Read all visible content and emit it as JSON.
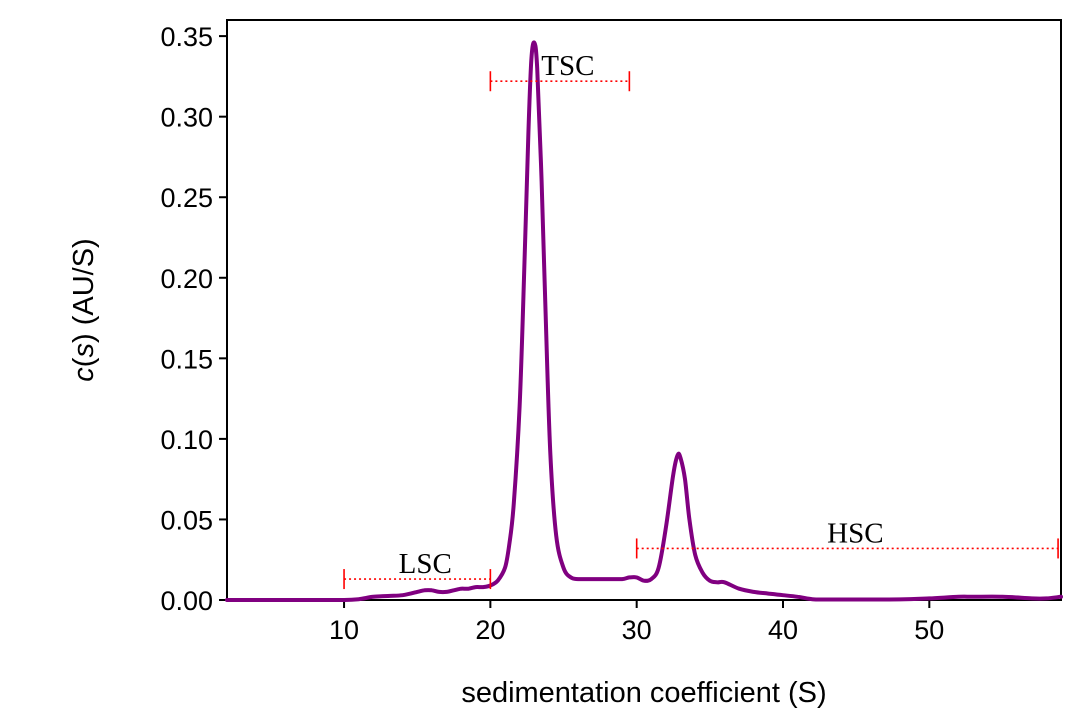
{
  "chart_data": {
    "type": "line",
    "title": "",
    "xlabel": "sedimentation coefficient (S)",
    "ylabel_italic": "c",
    "ylabel_prefix_paren": "(",
    "ylabel_var": "s",
    "ylabel_rest": ") (AU/S)",
    "xlim": [
      2,
      59
    ],
    "ylim": [
      0,
      0.36
    ],
    "xticks": [
      10,
      20,
      30,
      40,
      50
    ],
    "xtick_labels": [
      "10",
      "20",
      "30",
      "40",
      "50"
    ],
    "yticks": [
      0,
      0.05,
      0.1,
      0.15,
      0.2,
      0.25,
      0.3,
      0.35
    ],
    "ytick_labels": [
      "0.00",
      "0.05",
      "0.10",
      "0.15",
      "0.20",
      "0.25",
      "0.30",
      "0.35"
    ],
    "grid": false,
    "series": [
      {
        "color": "#800080",
        "x": [
          2,
          8,
          10,
          11,
          12,
          13,
          14,
          15,
          15.5,
          16,
          16.5,
          17,
          17.5,
          18,
          18.5,
          19,
          19.5,
          20,
          20.5,
          21,
          21.3,
          21.6,
          22,
          22.3,
          22.6,
          22.8,
          23.0,
          23.2,
          23.5,
          23.8,
          24.1,
          24.5,
          25,
          25.5,
          26,
          27,
          28,
          29,
          29.5,
          30,
          30.5,
          31,
          31.5,
          32,
          32.5,
          32.8,
          33.0,
          33.3,
          33.6,
          34,
          34.5,
          35,
          35.5,
          36,
          37,
          38,
          39,
          40,
          41,
          42,
          43,
          45,
          48,
          50,
          52,
          53,
          55,
          57,
          58,
          59
        ],
        "y": [
          0,
          0,
          0,
          0.0005,
          0.002,
          0.0025,
          0.003,
          0.005,
          0.006,
          0.006,
          0.005,
          0.005,
          0.006,
          0.007,
          0.007,
          0.008,
          0.008,
          0.009,
          0.012,
          0.02,
          0.035,
          0.06,
          0.12,
          0.2,
          0.29,
          0.335,
          0.346,
          0.33,
          0.26,
          0.17,
          0.09,
          0.04,
          0.02,
          0.014,
          0.013,
          0.013,
          0.013,
          0.013,
          0.014,
          0.014,
          0.012,
          0.013,
          0.02,
          0.045,
          0.078,
          0.09,
          0.088,
          0.075,
          0.05,
          0.028,
          0.017,
          0.012,
          0.011,
          0.011,
          0.007,
          0.005,
          0.004,
          0.003,
          0.002,
          0.0005,
          0.0003,
          0.0003,
          0.0004,
          0.001,
          0.002,
          0.002,
          0.002,
          0.001,
          0.001,
          0.002
        ]
      }
    ],
    "ranges": [
      {
        "label": "LSC",
        "x_start": 10,
        "x_end": 20,
        "y": 0.013
      },
      {
        "label": "TSC",
        "x_start": 20,
        "x_end": 29.5,
        "y": 0.322
      },
      {
        "label": "HSC",
        "x_start": 30,
        "x_end": 58.8,
        "y": 0.032
      }
    ],
    "range_color": "#ff0000"
  }
}
